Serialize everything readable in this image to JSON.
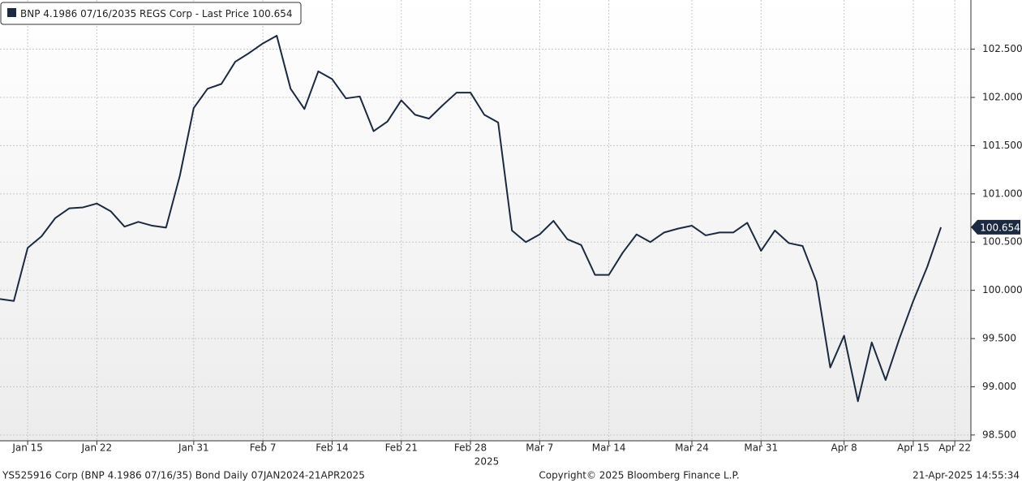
{
  "chart_data": {
    "type": "line",
    "series": [
      {
        "name": "BNP 4.1986 07/16/2035 REGS Corp - Last Price",
        "color": "#1b2a41",
        "values": [
          99.91,
          99.89,
          100.44,
          100.56,
          100.75,
          100.85,
          100.86,
          100.9,
          100.82,
          100.66,
          100.71,
          100.67,
          100.65,
          101.19,
          101.89,
          102.09,
          102.14,
          102.37,
          102.46,
          102.56,
          102.64,
          102.09,
          101.88,
          102.27,
          102.19,
          101.99,
          102.01,
          101.65,
          101.75,
          101.97,
          101.82,
          101.78,
          101.92,
          102.05,
          102.05,
          101.82,
          101.74,
          100.62,
          100.5,
          100.58,
          100.72,
          100.53,
          100.47,
          100.16,
          100.16,
          100.39,
          100.58,
          100.5,
          100.6,
          100.64,
          100.67,
          100.57,
          100.6,
          100.6,
          100.7,
          100.41,
          100.62,
          100.49,
          100.46,
          100.09,
          99.2,
          99.53,
          98.85,
          99.46,
          99.07,
          99.5,
          99.89,
          100.24,
          100.654,
          null
        ]
      }
    ],
    "categories": [
      null,
      null,
      "Jan 15",
      null,
      null,
      null,
      null,
      "Jan 22",
      null,
      null,
      null,
      null,
      null,
      null,
      "Jan 31",
      null,
      null,
      null,
      null,
      "Feb 7",
      null,
      null,
      null,
      null,
      "Feb 14",
      null,
      null,
      null,
      null,
      "Feb 21",
      null,
      null,
      null,
      null,
      "Feb 28",
      null,
      null,
      null,
      null,
      "Mar 7",
      null,
      null,
      null,
      null,
      "Mar 14",
      null,
      null,
      null,
      null,
      null,
      "Mar 24",
      null,
      null,
      null,
      null,
      "Mar 31",
      null,
      null,
      null,
      null,
      null,
      "Apr 8",
      null,
      null,
      null,
      null,
      "Apr 15",
      null,
      null,
      "Apr 22"
    ],
    "year_label": "2025",
    "last_price": 100.654,
    "ylim": [
      98.44,
      103.01
    ],
    "yticks": [
      {
        "value": 98.5,
        "label": "98.500"
      },
      {
        "value": 99,
        "label": "99.000"
      },
      {
        "value": 99.5,
        "label": "99.500"
      },
      {
        "value": 100,
        "label": "100.000"
      },
      {
        "value": 100.5,
        "label": "100.500"
      },
      {
        "value": 101,
        "label": "101.000"
      },
      {
        "value": 101.5,
        "label": "101.500"
      },
      {
        "value": 102,
        "label": "102.000"
      },
      {
        "value": 102.5,
        "label": "102.500"
      }
    ],
    "grid": true,
    "footer": {
      "left": "YS525916 Corp (BNP 4.1986 07/16/35) Bond  Daily 07JAN2024-21APR2025",
      "center": "Copyright© 2025 Bloomberg Finance L.P.",
      "right": "21-Apr-2025 14:55:34"
    }
  }
}
